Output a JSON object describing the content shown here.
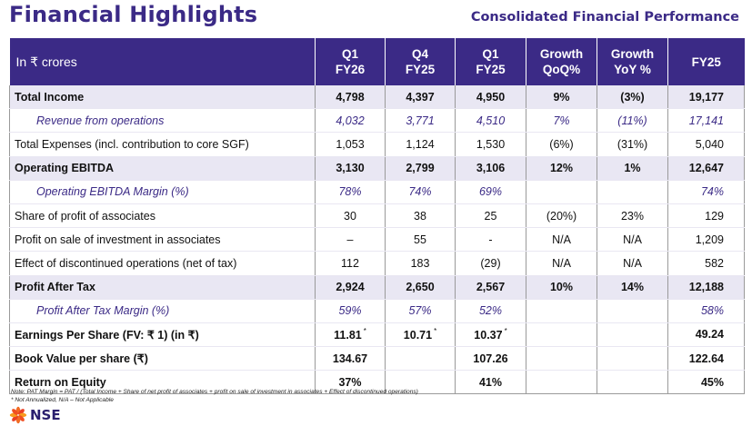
{
  "header": {
    "title": "Financial Highlights",
    "subtitle": "Consolidated Financial Performance"
  },
  "table": {
    "columns": [
      "In ₹ crores",
      "Q1\nFY26",
      "Q4\nFY25",
      "Q1\nFY25",
      "Growth\nQoQ%",
      "Growth\nYoY %",
      "FY25"
    ],
    "rows": [
      {
        "style": "hl",
        "cells": [
          "Total Income",
          "4,798",
          "4,397",
          "4,950",
          "9%",
          "(3%)",
          "19,177"
        ]
      },
      {
        "style": "it",
        "cells": [
          "Revenue from operations",
          "4,032",
          "3,771",
          "4,510",
          "7%",
          "(11%)",
          "17,141"
        ]
      },
      {
        "style": "plain",
        "cells": [
          "Total Expenses (incl. contribution to core SGF)",
          "1,053",
          "1,124",
          "1,530",
          "(6%)",
          "(31%)",
          "5,040"
        ]
      },
      {
        "style": "hl",
        "cells": [
          "Operating EBITDA",
          "3,130",
          "2,799",
          "3,106",
          "12%",
          "1%",
          "12,647"
        ]
      },
      {
        "style": "it",
        "cells": [
          "Operating EBITDA Margin (%)",
          "78%",
          "74%",
          "69%",
          "",
          "",
          "74%"
        ]
      },
      {
        "style": "plain",
        "cells": [
          "Share of profit of associates",
          "30",
          "38",
          "25",
          "(20%)",
          "23%",
          "129"
        ]
      },
      {
        "style": "plain",
        "cells": [
          "Profit on sale of investment in associates",
          "–",
          "55",
          "-",
          "N/A",
          "N/A",
          "1,209"
        ]
      },
      {
        "style": "plain",
        "cells": [
          "Effect of discontinued operations (net of tax)",
          "112",
          "183",
          "(29)",
          "N/A",
          "N/A",
          "582"
        ]
      },
      {
        "style": "hl",
        "cells": [
          "Profit After Tax",
          "2,924",
          "2,650",
          "2,567",
          "10%",
          "14%",
          "12,188"
        ]
      },
      {
        "style": "it",
        "cells": [
          "Profit After Tax Margin (%)",
          "59%",
          "57%",
          "52%",
          "",
          "",
          "58%"
        ]
      },
      {
        "style": "bold",
        "cells": [
          "Earnings Per Share (FV: ₹ 1) (in ₹)",
          "11.81",
          "10.71",
          "10.37",
          "",
          "",
          "49.24"
        ],
        "stars": [
          1,
          2,
          3
        ]
      },
      {
        "style": "bold",
        "cells": [
          "Book Value per share (₹)",
          "134.67",
          "",
          "107.26",
          "",
          "",
          "122.64"
        ]
      },
      {
        "style": "bold",
        "cells": [
          "Return on Equity",
          "37%",
          "",
          "41%",
          "",
          "",
          "45%"
        ]
      }
    ]
  },
  "footnotes": {
    "note1": "Note: PAT Margin = PAT / (Total Income + Share of net profit of associates + profit on sale of investment in associates + Effect of discontinued operations)",
    "note2": "* Not Annualized,  N/A – Not Applicable",
    "star_symbol": "*"
  },
  "logo": {
    "text": "NSE",
    "icon": "nse-logo-icon",
    "colors": [
      "#f26b22",
      "#ea3f24",
      "#f89a1c",
      "#f04f22"
    ]
  },
  "colors": {
    "brand": "#3b2a86",
    "row_highlight": "#e9e7f3"
  }
}
